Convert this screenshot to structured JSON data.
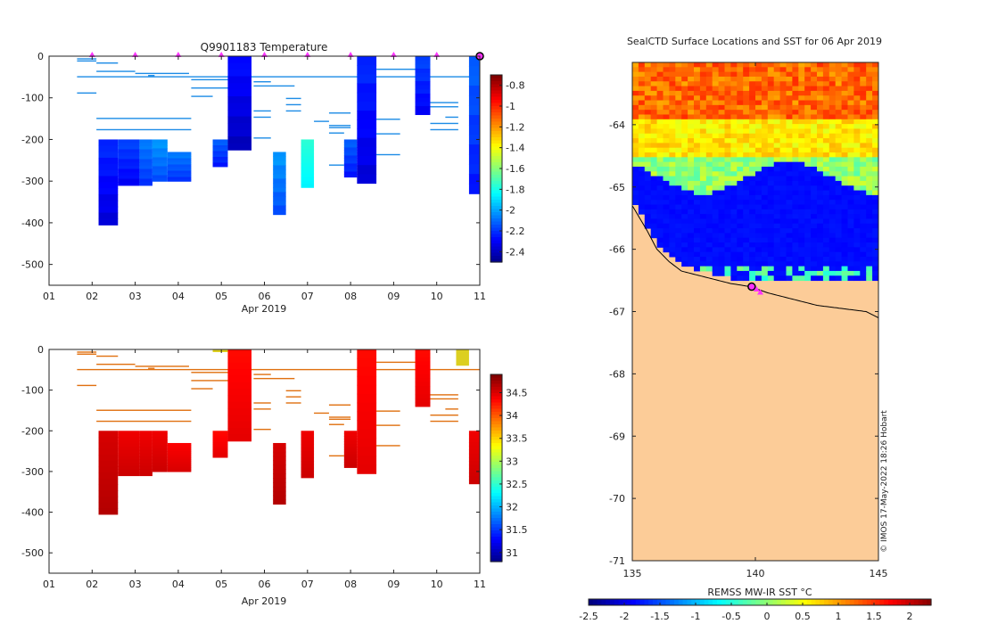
{
  "figure": {
    "credit": "© IMOS 17-May-2022 18:26 Hobart"
  },
  "colors": {
    "land": "#fccc98",
    "sea_cold": "#0a4fd2",
    "section_temp_default": "#1d8ce6",
    "section_temp_cold": "#0c66d8",
    "section_temp_warm": "#26cbd8",
    "section_sal_default": "#e07010",
    "section_sal_high": "#c03a08",
    "section_sal_fresh": "#dccf20",
    "marker": "#ff33ff",
    "coast": "#000000"
  },
  "chart_data": [
    {
      "id": "temperature_section",
      "type": "heatmap",
      "title": "Q9901183  Temperature",
      "xlabel": "Apr 2019",
      "ylabel": "",
      "xlim": [
        1,
        11
      ],
      "ylim": [
        -550,
        0
      ],
      "xticks": [
        "01",
        "02",
        "03",
        "04",
        "05",
        "06",
        "07",
        "08",
        "09",
        "10",
        "11"
      ],
      "yticks": [
        0,
        -100,
        -200,
        -300,
        -400,
        -500
      ],
      "colorbar": {
        "range": [
          -2.5,
          -0.7
        ],
        "ticks": [
          -0.8,
          -1,
          -1.2,
          -1.4,
          -1.6,
          -1.8,
          -2,
          -2.2,
          -2.4
        ],
        "colormap": "jet"
      },
      "surface_markers": [
        2,
        3,
        4,
        5,
        6,
        7,
        8,
        9,
        10,
        11
      ],
      "deep_profiles": [
        {
          "x0": 2.15,
          "x1": 2.6,
          "depth": 405,
          "v": -2.2
        },
        {
          "x0": 2.6,
          "x1": 3.1,
          "depth": 310,
          "v": -2.15
        },
        {
          "x0": 3.1,
          "x1": 3.4,
          "depth": 310,
          "v": -2.05
        },
        {
          "x0": 3.4,
          "x1": 3.75,
          "depth": 300,
          "v": -2.0
        },
        {
          "x0": 3.75,
          "x1": 4.3,
          "depth": 300,
          "v": -2.05
        },
        {
          "x0": 4.8,
          "x1": 5.15,
          "depth": 265,
          "v": -2.1
        },
        {
          "x0": 5.15,
          "x1": 5.7,
          "depth": 225,
          "v": -2.25
        },
        {
          "x0": 6.2,
          "x1": 6.5,
          "depth": 380,
          "v": -2.0
        },
        {
          "x0": 6.85,
          "x1": 7.15,
          "depth": 315,
          "v": -1.75
        },
        {
          "x0": 7.85,
          "x1": 8.15,
          "depth": 290,
          "v": -2.1
        },
        {
          "x0": 8.15,
          "x1": 8.6,
          "depth": 305,
          "v": -2.2
        },
        {
          "x0": 9.5,
          "x1": 9.85,
          "depth": 140,
          "v": -2.15
        },
        {
          "x0": 10.75,
          "x1": 11.0,
          "depth": 330,
          "v": -2.1
        }
      ]
    },
    {
      "id": "salinity_section",
      "type": "heatmap",
      "title": "",
      "xlabel": "Apr 2019",
      "ylabel": "",
      "xlim": [
        1,
        11
      ],
      "ylim": [
        -550,
        0
      ],
      "xticks": [
        "01",
        "02",
        "03",
        "04",
        "05",
        "06",
        "07",
        "08",
        "09",
        "10",
        "11"
      ],
      "yticks": [
        0,
        -100,
        -200,
        -300,
        -400,
        -500
      ],
      "colorbar": {
        "range": [
          30.8,
          34.9
        ],
        "ticks": [
          34.5,
          34,
          33.5,
          33,
          32.5,
          32,
          31.5,
          31
        ],
        "colormap": "jet"
      },
      "deep_profiles": [
        {
          "x0": 2.15,
          "x1": 2.6,
          "depth": 405,
          "v": 34.6
        },
        {
          "x0": 2.6,
          "x1": 3.1,
          "depth": 310,
          "v": 34.5
        },
        {
          "x0": 3.1,
          "x1": 3.4,
          "depth": 310,
          "v": 34.5
        },
        {
          "x0": 3.4,
          "x1": 3.75,
          "depth": 300,
          "v": 34.5
        },
        {
          "x0": 3.75,
          "x1": 4.3,
          "depth": 300,
          "v": 34.45
        },
        {
          "x0": 4.8,
          "x1": 5.15,
          "depth": 265,
          "v": 34.4
        },
        {
          "x0": 5.15,
          "x1": 5.7,
          "depth": 225,
          "v": 34.4
        },
        {
          "x0": 6.2,
          "x1": 6.5,
          "depth": 380,
          "v": 34.6
        },
        {
          "x0": 6.85,
          "x1": 7.15,
          "depth": 315,
          "v": 34.5
        },
        {
          "x0": 7.85,
          "x1": 8.15,
          "depth": 290,
          "v": 34.5
        },
        {
          "x0": 8.15,
          "x1": 8.6,
          "depth": 305,
          "v": 34.4
        },
        {
          "x0": 9.5,
          "x1": 9.85,
          "depth": 140,
          "v": 34.4
        },
        {
          "x0": 10.75,
          "x1": 11.0,
          "depth": 330,
          "v": 34.5
        }
      ]
    },
    {
      "id": "sst_map",
      "type": "heatmap",
      "title": "SealCTD Surface Locations and SST for 06 Apr 2019",
      "xlabel": "",
      "ylabel": "",
      "xlim": [
        135,
        145
      ],
      "ylim": [
        -71,
        -63
      ],
      "xticks": [
        135,
        140,
        145
      ],
      "yticks": [
        -64,
        -65,
        -66,
        -67,
        -68,
        -69,
        -70,
        -71
      ],
      "colorbar": {
        "label": "REMSS MW-IR SST °C",
        "range": [
          -2.5,
          2.3
        ],
        "ticks": [
          -2.5,
          -2,
          -1.5,
          -1,
          -0.5,
          0,
          0.5,
          1,
          1.5,
          2
        ],
        "colormap": "jet"
      },
      "sst_zones": [
        {
          "lat_top": -63,
          "lat_bottom": -63.9,
          "sst": 1.3
        },
        {
          "lat_top": -63.9,
          "lat_bottom": -64.5,
          "sst": 0.6
        },
        {
          "lat_top": -64.5,
          "lat_bottom": -64.8,
          "sst": 0.1
        },
        {
          "lat_top": -64.8,
          "lat_bottom": -66.2,
          "sst": -1.8
        }
      ],
      "seal_locations": [
        {
          "lon": 139.85,
          "lat": -66.6
        },
        {
          "lon": 140.05,
          "lat": -66.65
        },
        {
          "lon": 140.2,
          "lat": -66.7
        }
      ]
    }
  ]
}
